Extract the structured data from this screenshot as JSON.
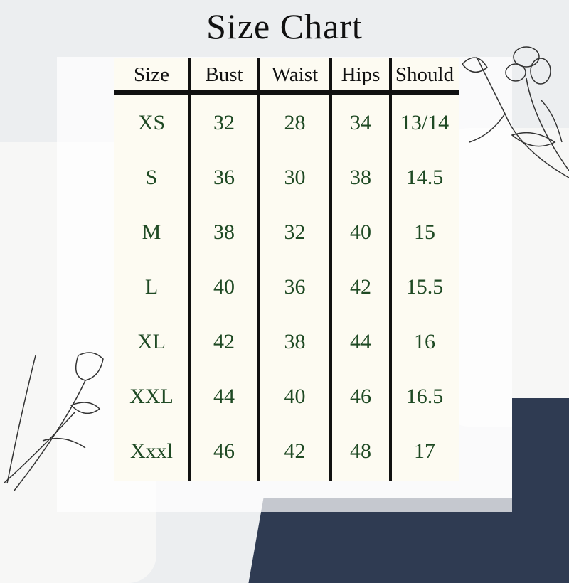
{
  "title": "Size Chart",
  "colors": {
    "header_text": "#111111",
    "value_text": "#1f4a24",
    "table_bg": "#fdfbf2",
    "rule": "#111111"
  },
  "table": {
    "headers": [
      "Size",
      "Bust",
      "Waist",
      "Hips",
      "Should"
    ],
    "rows": [
      [
        "XS",
        "32",
        "28",
        "34",
        "13/14"
      ],
      [
        "S",
        "36",
        "30",
        "38",
        "14.5"
      ],
      [
        "M",
        "38",
        "32",
        "40",
        "15"
      ],
      [
        "L",
        "40",
        "36",
        "42",
        "15.5"
      ],
      [
        "XL",
        "42",
        "38",
        "44",
        "16"
      ],
      [
        "XXL",
        "44",
        "40",
        "46",
        "16.5"
      ],
      [
        "Xxxl",
        "46",
        "42",
        "48",
        "17"
      ]
    ]
  },
  "chart_data": {
    "type": "table",
    "title": "Size Chart",
    "columns": [
      "Size",
      "Bust",
      "Waist",
      "Hips",
      "Should"
    ],
    "rows": [
      [
        "XS",
        "32",
        "28",
        "34",
        "13/14"
      ],
      [
        "S",
        "36",
        "30",
        "38",
        "14.5"
      ],
      [
        "M",
        "38",
        "32",
        "40",
        "15"
      ],
      [
        "L",
        "40",
        "36",
        "42",
        "15.5"
      ],
      [
        "XL",
        "42",
        "38",
        "44",
        "16"
      ],
      [
        "XXL",
        "44",
        "40",
        "46",
        "16.5"
      ],
      [
        "Xxxl",
        "46",
        "42",
        "48",
        "17"
      ]
    ]
  }
}
